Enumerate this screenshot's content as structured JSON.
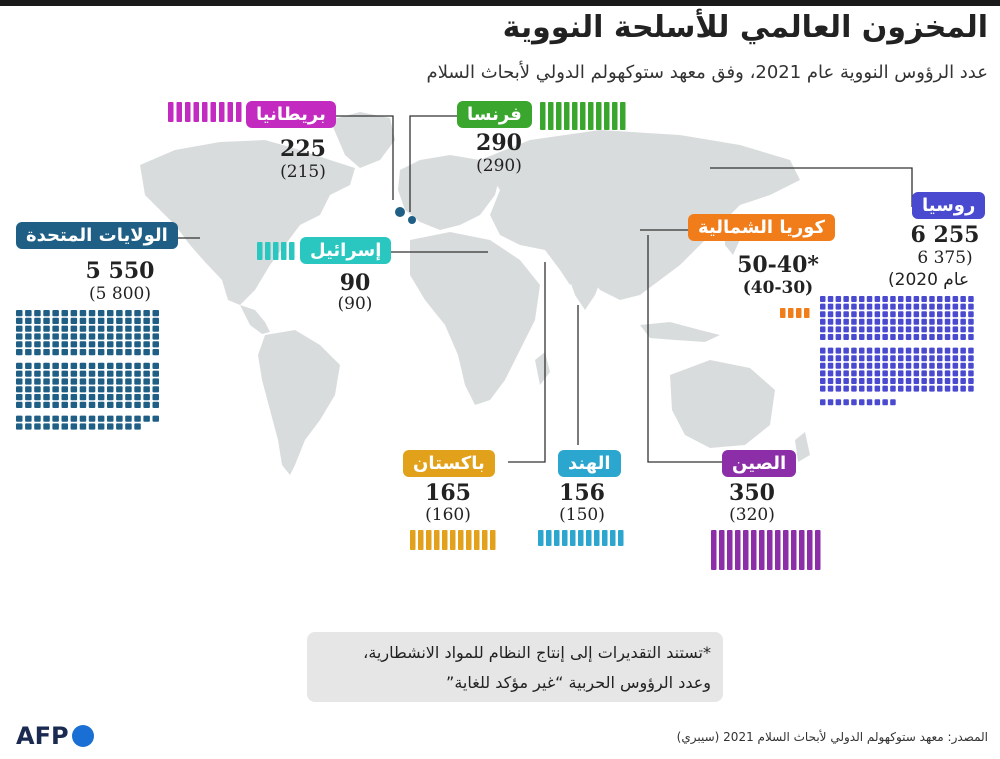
{
  "header": {
    "title": "المخزون العالمي للأسلحة النووية",
    "subtitle": "عدد الرؤوس النووية عام 2021، وفق معهد ستوكهولم الدولي لأبحاث السلام"
  },
  "chart_data": {
    "type": "pictogram-map",
    "title": "المخزون العالمي للأسلحة النووية",
    "subtitle": "عدد الرؤوس النووية عام 2021، وفق معهد ستوكهولم الدولي لأبحاث السلام",
    "countries": [
      {
        "name": "الولايات المتحدة",
        "value_text": "5 550",
        "prev_text": "(5 800)",
        "value": 5550,
        "prev": 5800,
        "color": "#1f5f86"
      },
      {
        "name": "بريطانيا",
        "value_text": "225",
        "prev_text": "(215)",
        "value": 225,
        "prev": 215,
        "color": "#c32bc0"
      },
      {
        "name": "فرنسا",
        "value_text": "290",
        "prev_text": "(290)",
        "value": 290,
        "prev": 290,
        "color": "#3aa62e"
      },
      {
        "name": "إسرائيل",
        "value_text": "90",
        "prev_text": "(90)",
        "value": 90,
        "prev": 90,
        "color": "#29c7c0"
      },
      {
        "name": "روسيا",
        "value_text": "6 255",
        "prev_text": "6 375)",
        "extra_text": "عام 2020)",
        "value": 6255,
        "prev": 6375,
        "color": "#4a4ad0"
      },
      {
        "name": "كوريا الشمالية",
        "value_text": "50-40*",
        "prev_text": "(40-30)",
        "value": 45,
        "prev": 35,
        "color": "#f07d1a"
      },
      {
        "name": "باكستان",
        "value_text": "165",
        "prev_text": "(160)",
        "value": 165,
        "prev": 160,
        "color": "#e2a11a"
      },
      {
        "name": "الهند",
        "value_text": "156",
        "prev_text": "(150)",
        "value": 156,
        "prev": 150,
        "color": "#2ba6cf"
      },
      {
        "name": "الصين",
        "value_text": "350",
        "prev_text": "(320)",
        "value": 350,
        "prev": 320,
        "color": "#8b2ea8"
      }
    ]
  },
  "footnote": {
    "line1": "*تستند التقديرات إلى إنتاج النظام للمواد الانشطارية،",
    "line2": "وعدد الرؤوس الحربية “غير مؤكد للغاية”"
  },
  "source": "المصدر: معهد ستوكهولم الدولي لأبحاث السلام 2021 (سيبري)",
  "logo": {
    "text": "AFP"
  },
  "colors": {
    "map": "#d9dcdd",
    "line": "#333333"
  }
}
